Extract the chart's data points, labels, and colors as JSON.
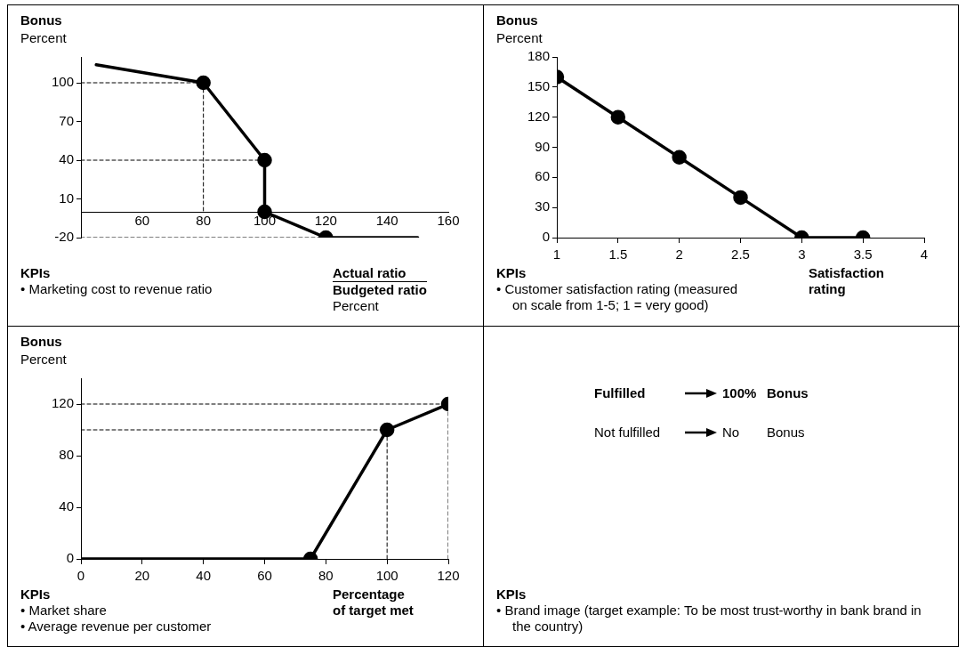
{
  "chart_data": [
    {
      "type": "line",
      "title": "Bonus",
      "ylabel": "Percent",
      "xlabel": "Actual ratio\nBudgeted ratio\nPercent",
      "xlim": [
        40,
        160
      ],
      "xticks": [
        60,
        80,
        100,
        120,
        140,
        160
      ],
      "ylim": [
        -20,
        120
      ],
      "yticks": [
        -20,
        10,
        40,
        70,
        100
      ],
      "grid": false,
      "annotations": [
        "KPIs",
        "• Marketing cost to revenue ratio"
      ],
      "series": [
        {
          "type": "line",
          "color": "#000000",
          "marker": "none",
          "line_style": "dashed",
          "x": [
            40,
            80
          ],
          "values": [
            100,
            100
          ]
        },
        {
          "type": "line",
          "color": "#000000",
          "marker": "none",
          "line_style": "dashed",
          "x": [
            80,
            80
          ],
          "values": [
            100,
            0
          ]
        },
        {
          "type": "line",
          "color": "#000000",
          "marker": "none",
          "line_style": "dashed",
          "x": [
            40,
            100
          ],
          "values": [
            40,
            40
          ]
        },
        {
          "type": "line",
          "color": "#000000",
          "marker": "none",
          "line_style": "dashed",
          "x": [
            40,
            120
          ],
          "values": [
            -20,
            -20
          ]
        },
        {
          "type": "line",
          "color": "#000000",
          "marker": "none",
          "line_style": "solid",
          "x": [
            45,
            80,
            100,
            100,
            120,
            150
          ],
          "values": [
            114,
            100,
            40,
            0,
            -20,
            -20
          ]
        },
        {
          "type": "scatter",
          "color": "#000000",
          "marker": "circle",
          "x": [
            80,
            100,
            100,
            120
          ],
          "values": [
            100,
            40,
            0,
            -20
          ]
        }
      ]
    },
    {
      "type": "line",
      "title": "Bonus",
      "ylabel": "Percent",
      "xlabel": "Satisfaction\nrating",
      "xlim": [
        1,
        4
      ],
      "xticks": [
        1,
        1.5,
        2,
        2.5,
        3,
        3.5,
        4
      ],
      "ylim": [
        0,
        180
      ],
      "yticks": [
        0,
        30,
        60,
        90,
        120,
        150,
        180
      ],
      "grid": false,
      "annotations": [
        "KPIs",
        "• Customer satisfaction rating (measured on scale from 1-5; 1 = very good)"
      ],
      "series": [
        {
          "type": "line",
          "color": "#000000",
          "marker": "circle",
          "line_style": "solid",
          "x": [
            1,
            1.5,
            2,
            2.5,
            3,
            3.5
          ],
          "values": [
            160,
            120,
            80,
            40,
            0,
            0
          ]
        }
      ]
    },
    {
      "type": "line",
      "title": "Bonus",
      "ylabel": "Percent",
      "xlabel": "Percentage\nof target met",
      "xlim": [
        0,
        120
      ],
      "xticks": [
        0,
        20,
        40,
        60,
        80,
        100,
        120
      ],
      "ylim": [
        0,
        140
      ],
      "yticks": [
        0,
        40,
        80,
        120
      ],
      "grid": false,
      "annotations": [
        "KPIs",
        "• Market share",
        "• Average revenue per customer"
      ],
      "series": [
        {
          "type": "line",
          "color": "#000000",
          "marker": "none",
          "line_style": "dashed",
          "x": [
            0,
            120
          ],
          "values": [
            120,
            120
          ]
        },
        {
          "type": "line",
          "color": "#000000",
          "marker": "none",
          "line_style": "dashed",
          "x": [
            0,
            100
          ],
          "values": [
            100,
            100
          ]
        },
        {
          "type": "line",
          "color": "#000000",
          "marker": "none",
          "line_style": "dashed",
          "x": [
            100,
            100
          ],
          "values": [
            0,
            100
          ]
        },
        {
          "type": "line",
          "color": "#000000",
          "marker": "none",
          "line_style": "dashed",
          "x": [
            120,
            120
          ],
          "values": [
            0,
            120
          ]
        },
        {
          "type": "line",
          "color": "#000000",
          "marker": "none",
          "line_style": "solid",
          "x": [
            0,
            75,
            100,
            120
          ],
          "values": [
            0,
            0,
            100,
            120
          ]
        },
        {
          "type": "scatter",
          "color": "#000000",
          "marker": "circle",
          "x": [
            75,
            100,
            120
          ],
          "values": [
            0,
            100,
            120
          ]
        }
      ]
    },
    {
      "type": "other",
      "annotations": [
        "Fulfilled",
        "100%",
        "Bonus",
        "Not fulfilled",
        "No",
        "Bonus",
        "KPIs",
        "• Brand image (target example: To be most trust-worthy in bank brand in the country)"
      ]
    }
  ]
}
